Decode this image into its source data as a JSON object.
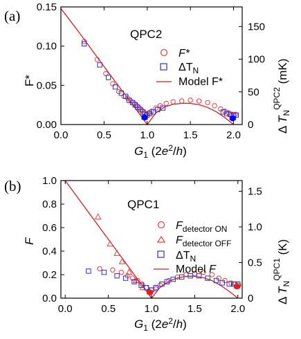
{
  "figure": {
    "panel_labels": [
      "(a)",
      "(b)"
    ]
  },
  "chart_data": [
    {
      "type": "scatter",
      "panel": "(a)",
      "title": "QPC2",
      "xlabel": "G₁ (2e²/h)",
      "ylabel": "F*",
      "y2label": "Δ T_N^QPC2 (mK)",
      "xlim": [
        0.0,
        2.1
      ],
      "ylim": [
        0.0,
        0.15
      ],
      "y2lim": [
        0,
        180
      ],
      "xticks": [
        "0.0",
        "0.5",
        "1.0",
        "1.5",
        "2.0"
      ],
      "yticks": [
        "0.00",
        "0.05",
        "0.10",
        "0.15"
      ],
      "y2ticks": [
        "0",
        "50",
        "100",
        "150"
      ],
      "legend_position": "top-right",
      "series": [
        {
          "name": "F*",
          "marker": "circle",
          "color": "#e04040",
          "x": [
            0.27,
            0.42,
            0.52,
            0.6,
            0.67,
            0.73,
            0.77,
            0.81,
            0.85,
            0.88,
            0.91,
            0.94,
            0.97,
            0.99,
            1.02,
            1.05,
            1.1,
            1.15,
            1.22,
            1.3,
            1.4,
            1.5,
            1.6,
            1.7,
            1.78,
            1.85,
            1.9,
            1.94,
            1.98,
            2.0,
            2.02
          ],
          "y": [
            0.106,
            0.083,
            0.065,
            0.052,
            0.042,
            0.036,
            0.034,
            0.03,
            0.027,
            0.024,
            0.021,
            0.018,
            0.015,
            0.013,
            0.015,
            0.017,
            0.021,
            0.024,
            0.027,
            0.029,
            0.03,
            0.031,
            0.03,
            0.028,
            0.024,
            0.02,
            0.017,
            0.015,
            0.013,
            0.012,
            0.013
          ]
        },
        {
          "name": "ΔT_N",
          "marker": "square",
          "color": "#3030c0",
          "x": [
            0.27,
            0.45,
            0.55,
            0.63,
            0.7,
            0.75,
            0.79,
            0.83,
            0.86,
            0.89,
            0.92,
            0.95,
            0.97,
            1.0,
            1.03,
            1.07,
            1.12,
            1.18,
            1.88,
            1.92,
            1.96,
            2.0,
            2.03
          ],
          "y": [
            0.103,
            0.076,
            0.06,
            0.048,
            0.04,
            0.036,
            0.031,
            0.028,
            0.025,
            0.022,
            0.019,
            0.016,
            0.013,
            0.012,
            0.014,
            0.016,
            0.019,
            0.021,
            0.016,
            0.014,
            0.013,
            0.012,
            0.012
          ]
        },
        {
          "name": "Model F*",
          "style": "line",
          "color": "#cc2020",
          "x": [
            0.0,
            0.2,
            0.4,
            0.6,
            0.8,
            0.9,
            1.0,
            1.1,
            1.2,
            1.3,
            1.4,
            1.45,
            1.5,
            1.6,
            1.7,
            1.8,
            1.9,
            2.0
          ],
          "y": [
            0.148,
            0.119,
            0.089,
            0.059,
            0.03,
            0.015,
            0.0,
            0.0148,
            0.0222,
            0.0259,
            0.027,
            0.0271,
            0.0269,
            0.0254,
            0.0218,
            0.0162,
            0.0089,
            0.0
          ]
        },
        {
          "name": "highlight",
          "marker": "filled",
          "color": "#0000ff",
          "x": [
            0.97,
            1.99
          ],
          "y": [
            0.009,
            0.008
          ]
        }
      ]
    },
    {
      "type": "scatter",
      "panel": "(b)",
      "title": "QPC1",
      "xlabel": "G₁ (2e²/h)",
      "ylabel": "F",
      "y2label": "Δ T_N^QPC1 (K)",
      "xlim": [
        -0.05,
        2.05
      ],
      "ylim": [
        0.0,
        1.0
      ],
      "y2lim": [
        0,
        1.65
      ],
      "xticks": [
        "0.0",
        "0.5",
        "1.0",
        "1.5",
        "2.0"
      ],
      "yticks": [
        "0.0",
        "0.2",
        "0.4",
        "0.6",
        "0.8",
        "1.0"
      ],
      "y2ticks": [
        "0",
        "0.5",
        "1.0",
        "1.5"
      ],
      "legend_position": "top-right",
      "series": [
        {
          "name": "F detector ON",
          "marker": "circle",
          "color": "#e04040",
          "x": [
            0.4,
            0.55,
            0.65,
            0.72,
            0.78,
            0.84,
            0.89,
            0.94,
            1.0,
            1.05,
            1.1,
            1.2,
            1.3,
            1.4,
            1.5,
            1.6,
            1.7,
            1.78,
            1.85,
            1.92,
            1.97,
            2.01
          ],
          "y": [
            0.25,
            0.24,
            0.22,
            0.19,
            0.17,
            0.15,
            0.12,
            0.09,
            0.07,
            0.08,
            0.11,
            0.15,
            0.18,
            0.2,
            0.21,
            0.22,
            0.2,
            0.17,
            0.15,
            0.13,
            0.12,
            0.11
          ]
        },
        {
          "name": "F detector OFF",
          "marker": "triangle",
          "color": "#e04040",
          "x": [
            0.38,
            0.52,
            0.6,
            0.66,
            0.74,
            0.82,
            0.9
          ],
          "y": [
            0.69,
            0.46,
            0.38,
            0.31,
            0.22,
            0.15,
            0.09
          ]
        },
        {
          "name": "ΔT_N",
          "marker": "square",
          "color": "#3030c0",
          "x": [
            0.27,
            0.45,
            0.6,
            0.7,
            0.8,
            0.88,
            0.94,
            1.0,
            1.05,
            1.12,
            1.18,
            1.25,
            1.35,
            1.45,
            1.55,
            1.65,
            1.75,
            1.82,
            1.9,
            1.96,
            2.0
          ],
          "y": [
            0.23,
            0.22,
            0.19,
            0.17,
            0.14,
            0.11,
            0.09,
            0.07,
            0.09,
            0.12,
            0.14,
            0.16,
            0.18,
            0.19,
            0.19,
            0.17,
            0.15,
            0.13,
            0.12,
            0.12,
            0.12
          ]
        },
        {
          "name": "Model F",
          "style": "line",
          "color": "#cc2020",
          "x": [
            0.0,
            0.2,
            0.4,
            0.6,
            0.8,
            0.9,
            1.0,
            1.1,
            1.2,
            1.3,
            1.4,
            1.45,
            1.5,
            1.6,
            1.7,
            1.8,
            1.9,
            2.0
          ],
          "y": [
            1.0,
            0.8,
            0.6,
            0.4,
            0.2,
            0.1,
            0.0,
            0.0938,
            0.1437,
            0.1725,
            0.1856,
            0.1868,
            0.1858,
            0.1744,
            0.1492,
            0.1088,
            0.0582,
            0.0
          ]
        },
        {
          "name": "highlight",
          "marker": "filled",
          "color": "#e02020",
          "x": [
            0.98,
            1.99
          ],
          "y": [
            0.05,
            0.1
          ]
        }
      ]
    }
  ],
  "legend_entries": {
    "a": [
      "F*",
      "ΔT",
      "N",
      "Model F*"
    ],
    "b": [
      "F",
      "detector ON",
      "F",
      "detector OFF",
      "ΔT",
      "N",
      "Model F"
    ]
  }
}
